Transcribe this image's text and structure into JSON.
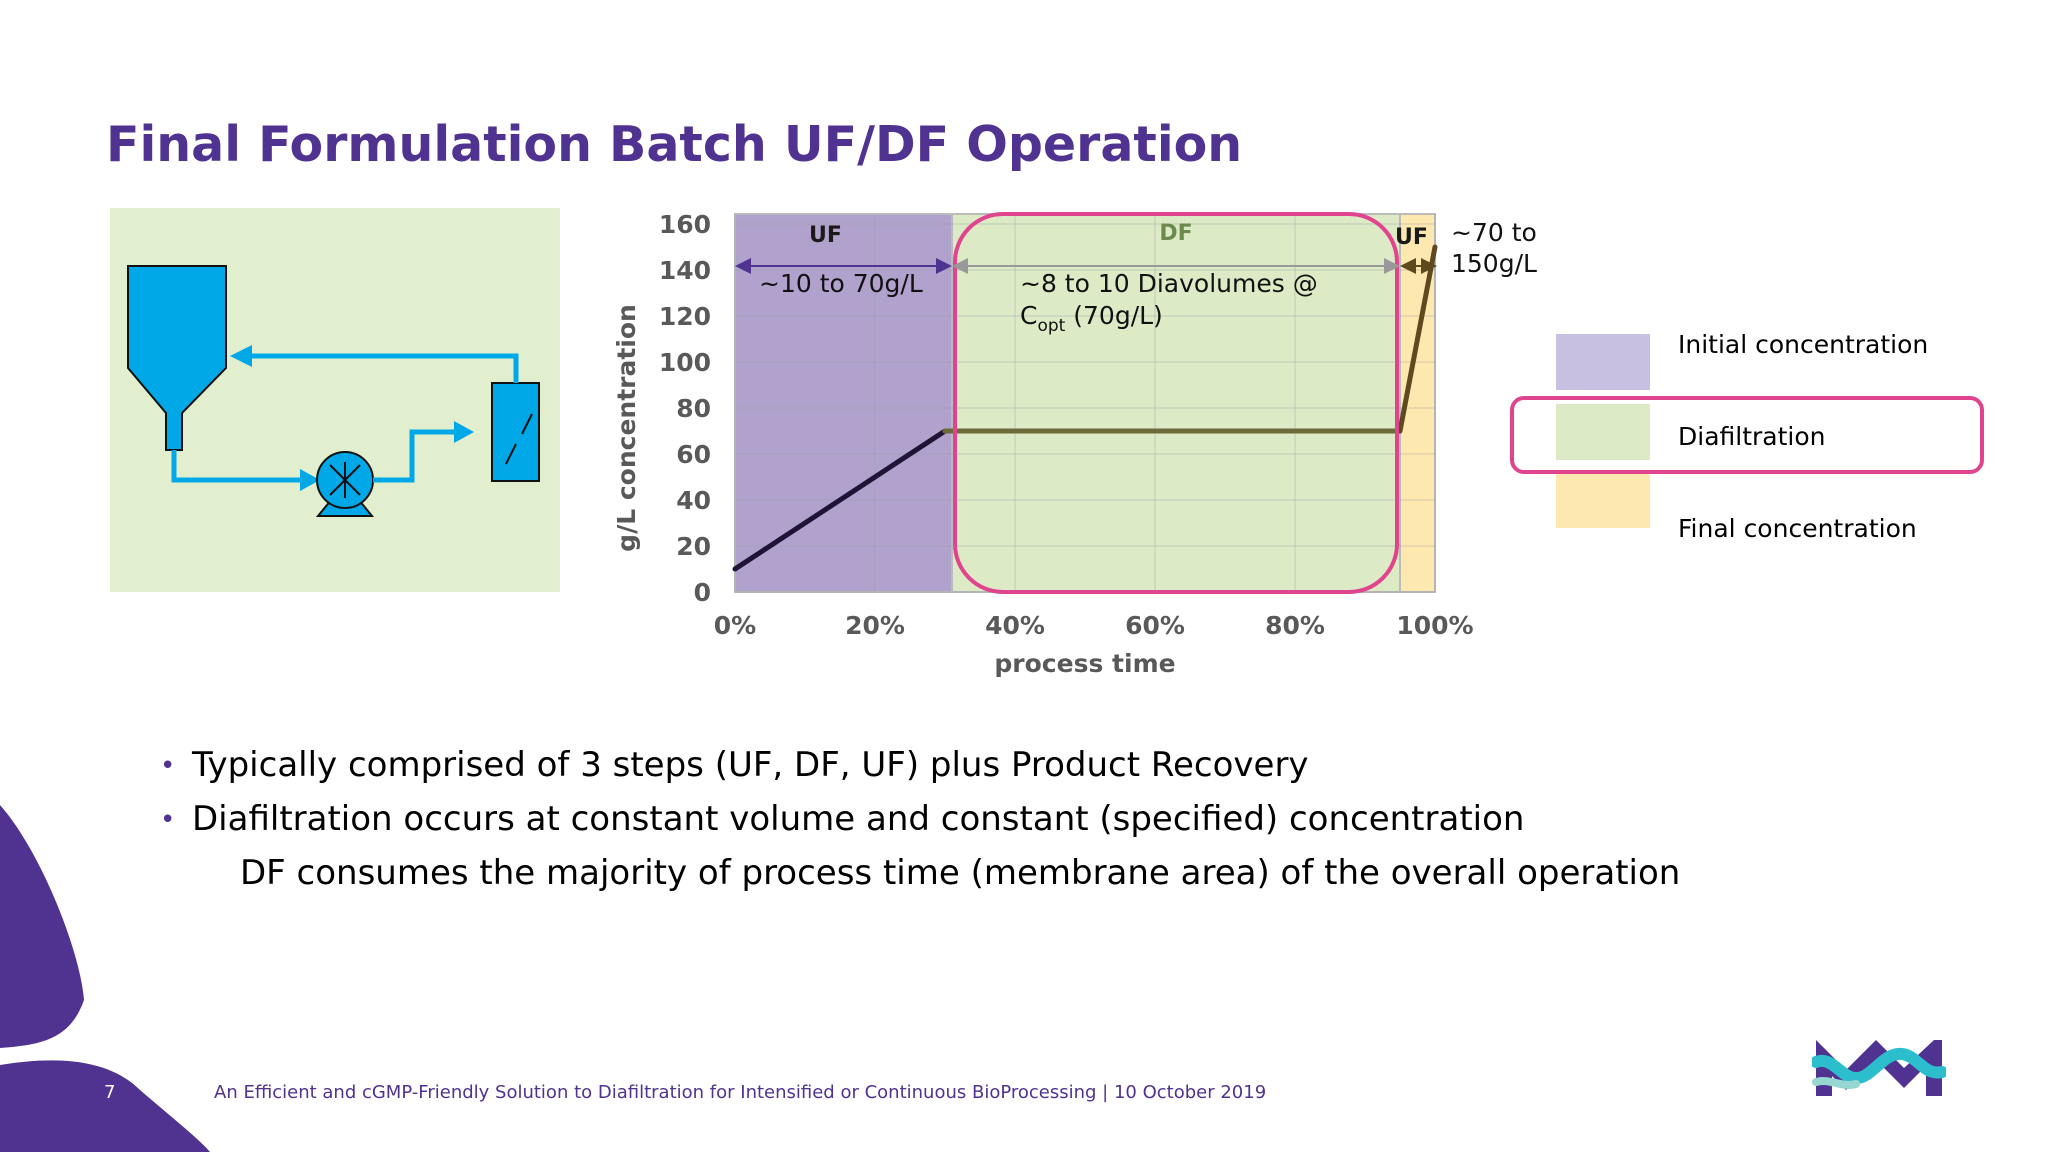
{
  "slide": {
    "title": "Final Formulation Batch UF/DF Operation",
    "page_number": "7",
    "footer": "An Efficient and cGMP-Friendly Solution to Diafiltration for Intensified or Continuous BioProcessing | 10 October 2019"
  },
  "schematic": {
    "icons": [
      "tank-icon",
      "pump-icon",
      "filter-cassette-icon",
      "flow-arrow-icon"
    ],
    "colors": {
      "background": "#e2efcf",
      "equipment": "#00a8e8",
      "outline": "#111111"
    }
  },
  "legend": {
    "items": [
      {
        "label": "Initial concentration",
        "color": "#c8c0e0"
      },
      {
        "label": "Diafiltration",
        "color": "#dcebc6",
        "highlighted": true
      },
      {
        "label": "Final concentration",
        "color": "#fde8b0"
      }
    ],
    "highlight_color": "#e0448e"
  },
  "bullets": [
    "Typically comprised of 3 steps (UF, DF, UF) plus Product Recovery",
    "Diafiltration occurs at constant volume and constant (specified) concentration"
  ],
  "sub_bullet": "DF consumes the majority of process time (membrane area) of the overall operation",
  "chart_data": {
    "type": "line",
    "xlabel": "process time",
    "ylabel": "g/L concentration",
    "xlim": [
      0,
      100
    ],
    "ylim": [
      0,
      160
    ],
    "x_ticks": [
      "0%",
      "20%",
      "40%",
      "60%",
      "80%",
      "100%"
    ],
    "x_tick_values": [
      0,
      20,
      40,
      60,
      80,
      100
    ],
    "y_ticks": [
      "0",
      "20",
      "40",
      "60",
      "80",
      "100",
      "120",
      "140",
      "160"
    ],
    "y_tick_values": [
      0,
      20,
      40,
      60,
      80,
      100,
      120,
      140,
      160
    ],
    "grid": true,
    "phases": [
      {
        "label": "UF",
        "start": 0,
        "end": 31,
        "color": "#b0a2cc",
        "label_color": "#1a1a1a",
        "annotation": "~10 to 70g/L"
      },
      {
        "label": "DF",
        "start": 31,
        "end": 95,
        "color": "#dcebc6",
        "label_color": "#6c8a4c",
        "annotation": "~8 to 10 Diavolumes @",
        "annotation_line2_main": "C",
        "annotation_line2_sub": "opt",
        "annotation_line2_rest": " (70g/L)"
      },
      {
        "label": "UF",
        "start": 95,
        "end": 100,
        "color": "#fde8b0",
        "label_color": "#1a1a1a",
        "annotation": "~70 to",
        "annotation_line2": "150g/L"
      }
    ],
    "series": [
      {
        "x": [
          0,
          30,
          95,
          100
        ],
        "y": [
          10,
          70,
          70,
          150
        ],
        "colors": [
          "#1f1435",
          "#6b6b3a",
          "#5e4a1e"
        ]
      }
    ],
    "highlight_phase": 1,
    "highlight_color": "#e0448e",
    "arrow_color": "#503291",
    "df_arrow_color": "#999999"
  }
}
